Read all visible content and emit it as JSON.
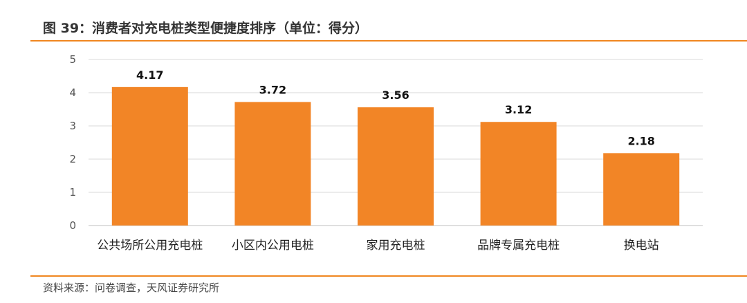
{
  "colors": {
    "accent": "#f0861f",
    "bar": "#f28526",
    "grid": "#d9d9d9",
    "axis": "#bfbfbf"
  },
  "figure": {
    "title": "图 39：消费者对充电桩类型便捷度排序（单位：得分）",
    "source": "资料来源：问卷调查，天风证券研究所"
  },
  "chart_data": {
    "type": "bar",
    "title": "图 39：消费者对充电桩类型便捷度排序（单位：得分）",
    "categories": [
      "公共场所公用充电桩",
      "小区内公用电桩",
      "家用充电桩",
      "品牌专属充电桩",
      "换电站"
    ],
    "values": [
      4.17,
      3.72,
      3.56,
      3.12,
      2.18
    ],
    "data_labels": [
      "4.17",
      "3.72",
      "3.56",
      "3.12",
      "2.18"
    ],
    "yticks": [
      "0",
      "1",
      "2",
      "3",
      "4",
      "5"
    ],
    "ylim": [
      0,
      5
    ],
    "xlabel": "",
    "ylabel": "",
    "grid": true,
    "legend": "none"
  }
}
